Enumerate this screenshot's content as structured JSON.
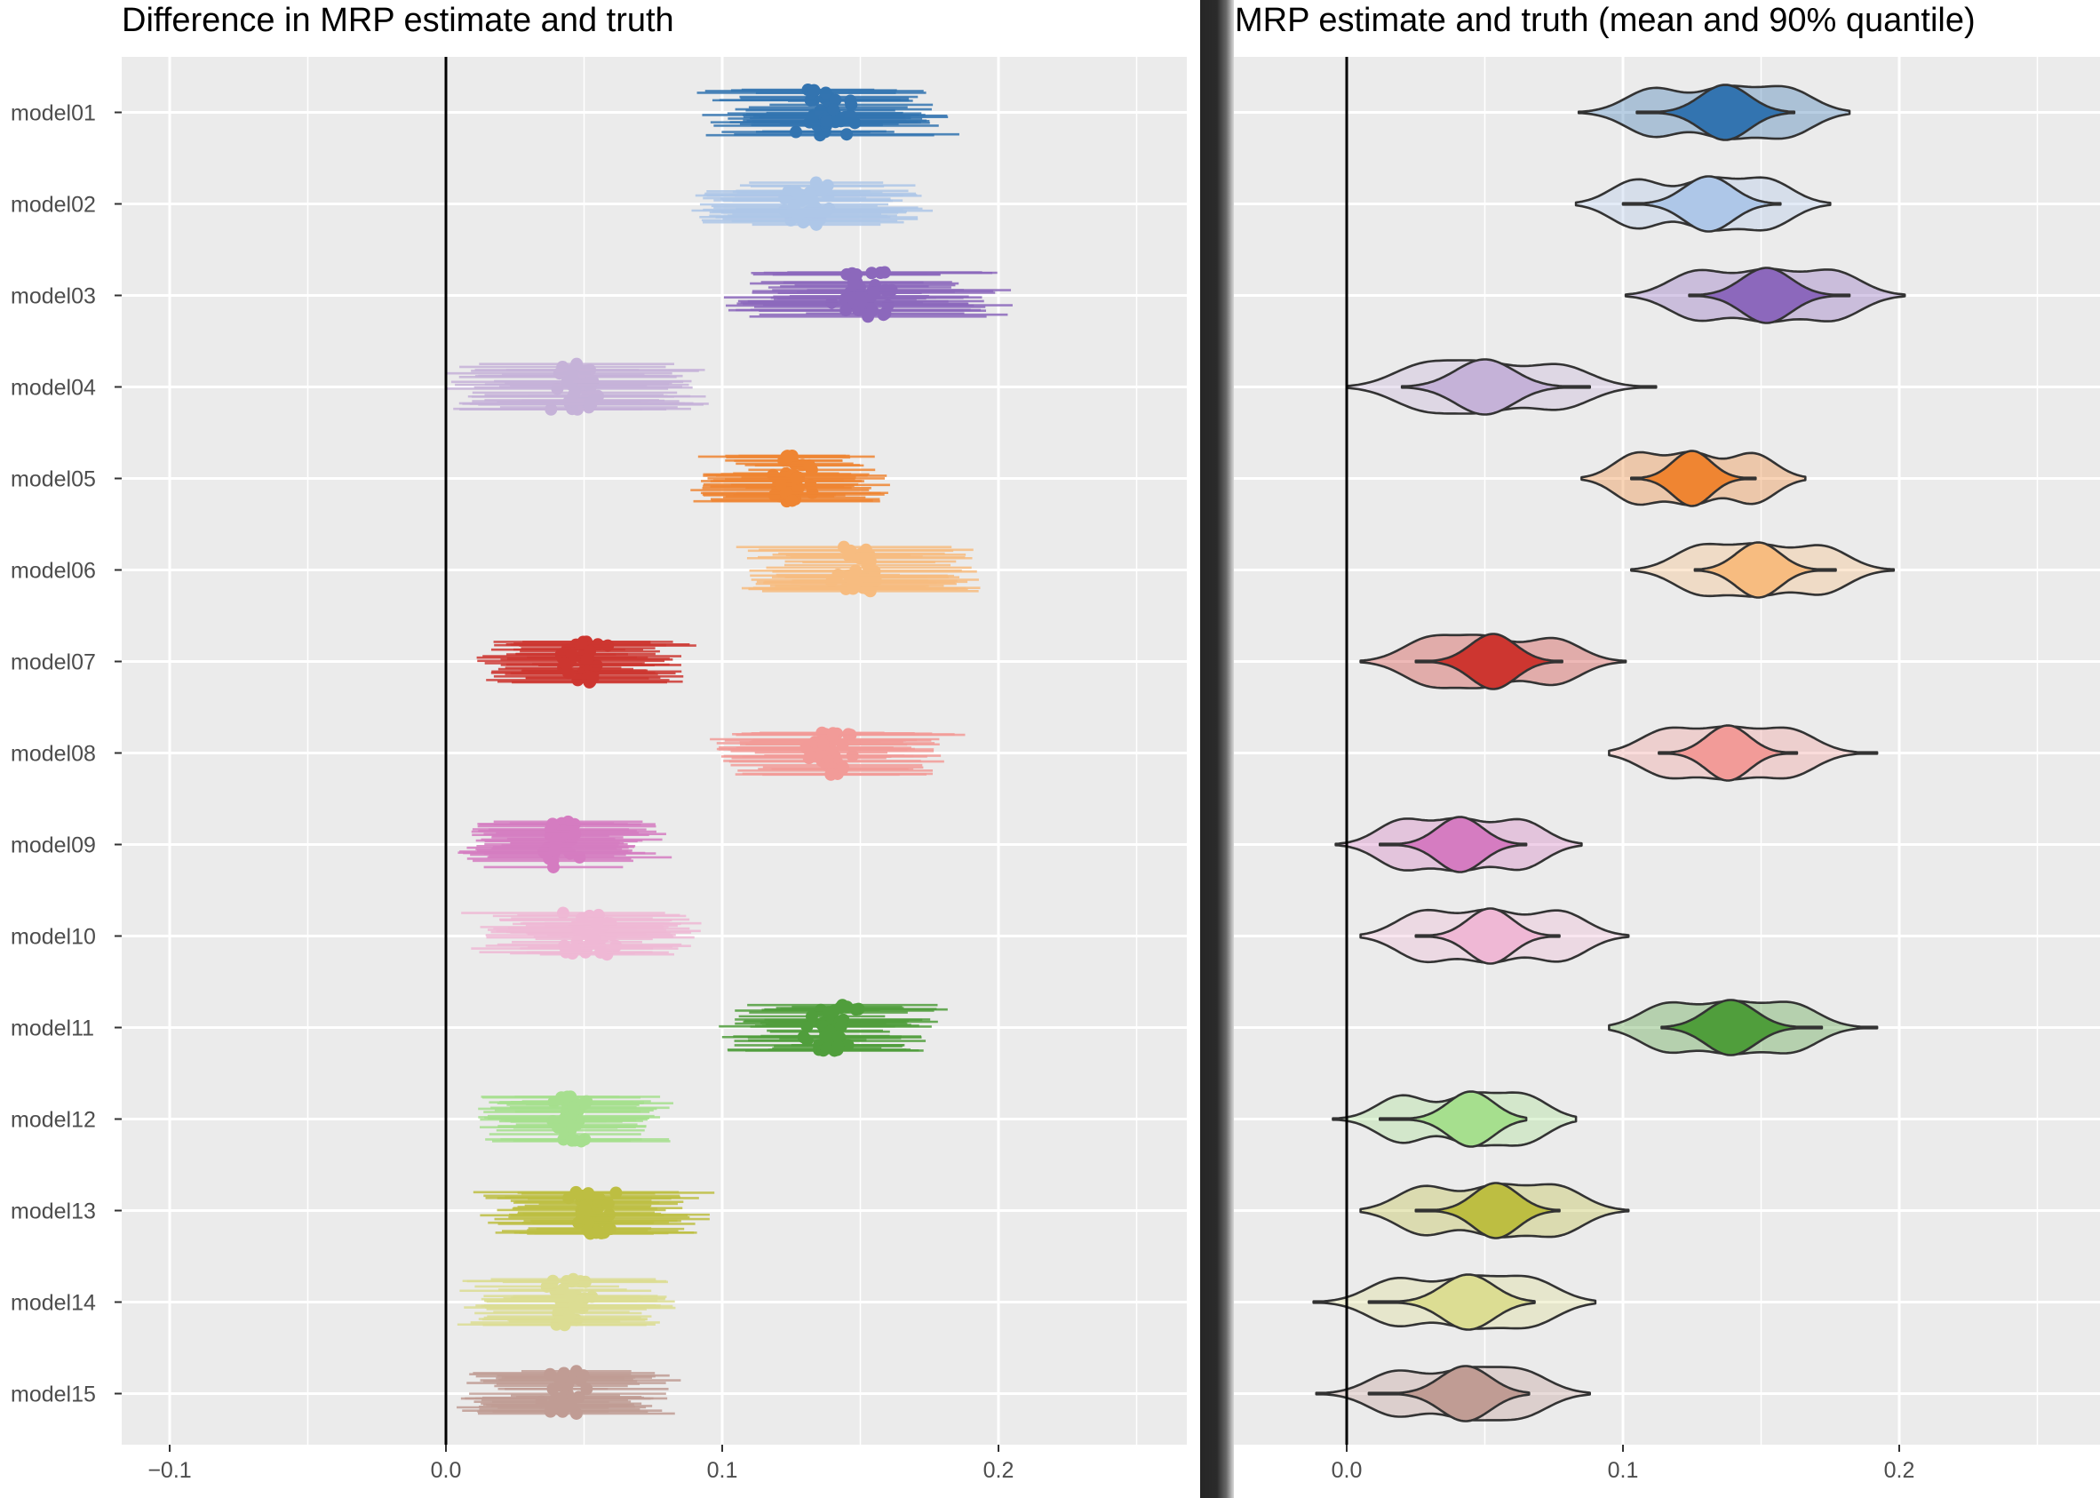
{
  "panels": {
    "left_title": "Difference in MRP estimate and truth",
    "right_title": "MRP estimate and truth (mean and 90% quantile)"
  },
  "colors": {
    "panel_bg": "#ebebeb",
    "grid": "#ffffff",
    "zero_line": "#000000",
    "outline": "#333333"
  },
  "chart_data": [
    {
      "type": "scatter",
      "subtype": "interval-dotplot",
      "title": "Difference in MRP estimate and truth",
      "xlabel": "",
      "ylabel": "",
      "xlim": [
        -0.1,
        0.27
      ],
      "xticks": [
        -0.1,
        0.0,
        0.1,
        0.2
      ],
      "xtick_labels": [
        "−0.1",
        "0.0",
        "0.1",
        "0.2"
      ],
      "reference_line": 0.0,
      "grid": true,
      "categories": [
        "model01",
        "model02",
        "model03",
        "model04",
        "model05",
        "model06",
        "model07",
        "model08",
        "model09",
        "model10",
        "model11",
        "model12",
        "model13",
        "model14",
        "model15"
      ],
      "series": [
        {
          "name": "model01",
          "color": "#3374b0",
          "center": 0.137,
          "spread": 0.016,
          "interval_low": 0.084,
          "interval_high": 0.182
        },
        {
          "name": "model02",
          "color": "#aec7e8",
          "center": 0.131,
          "spread": 0.015,
          "interval_low": 0.083,
          "interval_high": 0.175
        },
        {
          "name": "model03",
          "color": "#8c68bc",
          "center": 0.152,
          "spread": 0.018,
          "interval_low": 0.101,
          "interval_high": 0.202
        },
        {
          "name": "model04",
          "color": "#c5b2d8",
          "center": 0.047,
          "spread": 0.017,
          "interval_low": 0.0,
          "interval_high": 0.112
        },
        {
          "name": "model05",
          "color": "#ef8532",
          "center": 0.125,
          "spread": 0.013,
          "interval_low": 0.085,
          "interval_high": 0.166
        },
        {
          "name": "model06",
          "color": "#f7bc80",
          "center": 0.149,
          "spread": 0.016,
          "interval_low": 0.103,
          "interval_high": 0.198
        },
        {
          "name": "model07",
          "color": "#cd3630",
          "center": 0.05,
          "spread": 0.014,
          "interval_low": 0.005,
          "interval_high": 0.101
        },
        {
          "name": "model08",
          "color": "#f29b98",
          "center": 0.138,
          "spread": 0.016,
          "interval_low": 0.095,
          "interval_high": 0.192
        },
        {
          "name": "model09",
          "color": "#d57cc1",
          "center": 0.041,
          "spread": 0.013,
          "interval_low": -0.004,
          "interval_high": 0.085
        },
        {
          "name": "model10",
          "color": "#efb8d5",
          "center": 0.052,
          "spread": 0.015,
          "interval_low": 0.005,
          "interval_high": 0.102
        },
        {
          "name": "model11",
          "color": "#509e3c",
          "center": 0.139,
          "spread": 0.014,
          "interval_low": 0.095,
          "interval_high": 0.192
        },
        {
          "name": "model12",
          "color": "#a6df8e",
          "center": 0.045,
          "spread": 0.013,
          "interval_low": -0.005,
          "interval_high": 0.083
        },
        {
          "name": "model13",
          "color": "#bdbe42",
          "center": 0.054,
          "spread": 0.015,
          "interval_low": 0.005,
          "interval_high": 0.102
        },
        {
          "name": "model14",
          "color": "#dcdd93",
          "center": 0.044,
          "spread": 0.014,
          "interval_low": -0.012,
          "interval_high": 0.09
        },
        {
          "name": "model15",
          "color": "#c09c94",
          "center": 0.043,
          "spread": 0.014,
          "interval_low": -0.011,
          "interval_high": 0.088
        }
      ]
    },
    {
      "type": "violin",
      "title": "MRP estimate and truth (mean and 90% quantile)",
      "xlabel": "",
      "ylabel": "",
      "xlim": [
        -0.01,
        0.25
      ],
      "xticks": [
        0.0,
        0.1,
        0.2
      ],
      "xtick_labels": [
        "0.0",
        "0.1",
        "0.2"
      ],
      "reference_line": 0.0,
      "grid": true,
      "categories": [
        "model01",
        "model02",
        "model03",
        "model04",
        "model05",
        "model06",
        "model07",
        "model08",
        "model09",
        "model10",
        "model11",
        "model12",
        "model13",
        "model14",
        "model15"
      ],
      "series": [
        {
          "name": "model01",
          "color": "#3374b0",
          "truth_range": [
            0.084,
            0.182
          ],
          "truth_modes": [
            0.111,
            0.137,
            0.159
          ],
          "estimate_range": [
            0.105,
            0.162
          ],
          "estimate_mode": 0.137
        },
        {
          "name": "model02",
          "color": "#aec7e8",
          "truth_range": [
            0.083,
            0.175
          ],
          "truth_modes": [
            0.105,
            0.131,
            0.152
          ],
          "estimate_range": [
            0.1,
            0.157
          ],
          "estimate_mode": 0.131
        },
        {
          "name": "model03",
          "color": "#8c68bc",
          "truth_range": [
            0.101,
            0.202
          ],
          "truth_modes": [
            0.127,
            0.152,
            0.176
          ],
          "estimate_range": [
            0.124,
            0.182
          ],
          "estimate_mode": 0.152
        },
        {
          "name": "model04",
          "color": "#c5b2d8",
          "truth_range": [
            0.0,
            0.112
          ],
          "truth_modes": [
            0.028,
            0.05,
            0.077
          ],
          "estimate_range": [
            0.02,
            0.088
          ],
          "estimate_mode": 0.05
        },
        {
          "name": "model05",
          "color": "#ef8532",
          "truth_range": [
            0.085,
            0.166
          ],
          "truth_modes": [
            0.105,
            0.125,
            0.147
          ],
          "estimate_range": [
            0.103,
            0.148
          ],
          "estimate_mode": 0.125
        },
        {
          "name": "model06",
          "color": "#f7bc80",
          "truth_range": [
            0.103,
            0.198
          ],
          "truth_modes": [
            0.128,
            0.149,
            0.172
          ],
          "estimate_range": [
            0.126,
            0.177
          ],
          "estimate_mode": 0.149
        },
        {
          "name": "model07",
          "color": "#cd3630",
          "truth_range": [
            0.005,
            0.101
          ],
          "truth_modes": [
            0.03,
            0.05,
            0.075
          ],
          "estimate_range": [
            0.025,
            0.078
          ],
          "estimate_mode": 0.053
        },
        {
          "name": "model08",
          "color": "#f29b98",
          "truth_range": [
            0.095,
            0.192
          ],
          "truth_modes": [
            0.116,
            0.138,
            0.16
          ],
          "estimate_range": [
            0.113,
            0.163
          ],
          "estimate_mode": 0.138
        },
        {
          "name": "model09",
          "color": "#d57cc1",
          "truth_range": [
            -0.004,
            0.085
          ],
          "truth_modes": [
            0.02,
            0.041,
            0.063
          ],
          "estimate_range": [
            0.012,
            0.065
          ],
          "estimate_mode": 0.041
        },
        {
          "name": "model10",
          "color": "#efb8d5",
          "truth_range": [
            0.005,
            0.102
          ],
          "truth_modes": [
            0.028,
            0.052,
            0.077
          ],
          "estimate_range": [
            0.025,
            0.077
          ],
          "estimate_mode": 0.052
        },
        {
          "name": "model11",
          "color": "#509e3c",
          "truth_range": [
            0.095,
            0.192
          ],
          "truth_modes": [
            0.116,
            0.139,
            0.161
          ],
          "estimate_range": [
            0.114,
            0.172
          ],
          "estimate_mode": 0.139
        },
        {
          "name": "model12",
          "color": "#a6df8e",
          "truth_range": [
            -0.005,
            0.083
          ],
          "truth_modes": [
            0.02,
            0.045,
            0.064
          ],
          "estimate_range": [
            0.012,
            0.065
          ],
          "estimate_mode": 0.045
        },
        {
          "name": "model13",
          "color": "#bdbe42",
          "truth_range": [
            0.005,
            0.102
          ],
          "truth_modes": [
            0.028,
            0.054,
            0.076
          ],
          "estimate_range": [
            0.025,
            0.077
          ],
          "estimate_mode": 0.054
        },
        {
          "name": "model14",
          "color": "#dcdd93",
          "truth_range": [
            -0.012,
            0.09
          ],
          "truth_modes": [
            0.018,
            0.044,
            0.066
          ],
          "estimate_range": [
            0.008,
            0.068
          ],
          "estimate_mode": 0.044
        },
        {
          "name": "model15",
          "color": "#c09c94",
          "truth_range": [
            -0.011,
            0.088
          ],
          "truth_modes": [
            0.018,
            0.043,
            0.063
          ],
          "estimate_range": [
            0.008,
            0.066
          ],
          "estimate_mode": 0.043
        }
      ]
    }
  ]
}
